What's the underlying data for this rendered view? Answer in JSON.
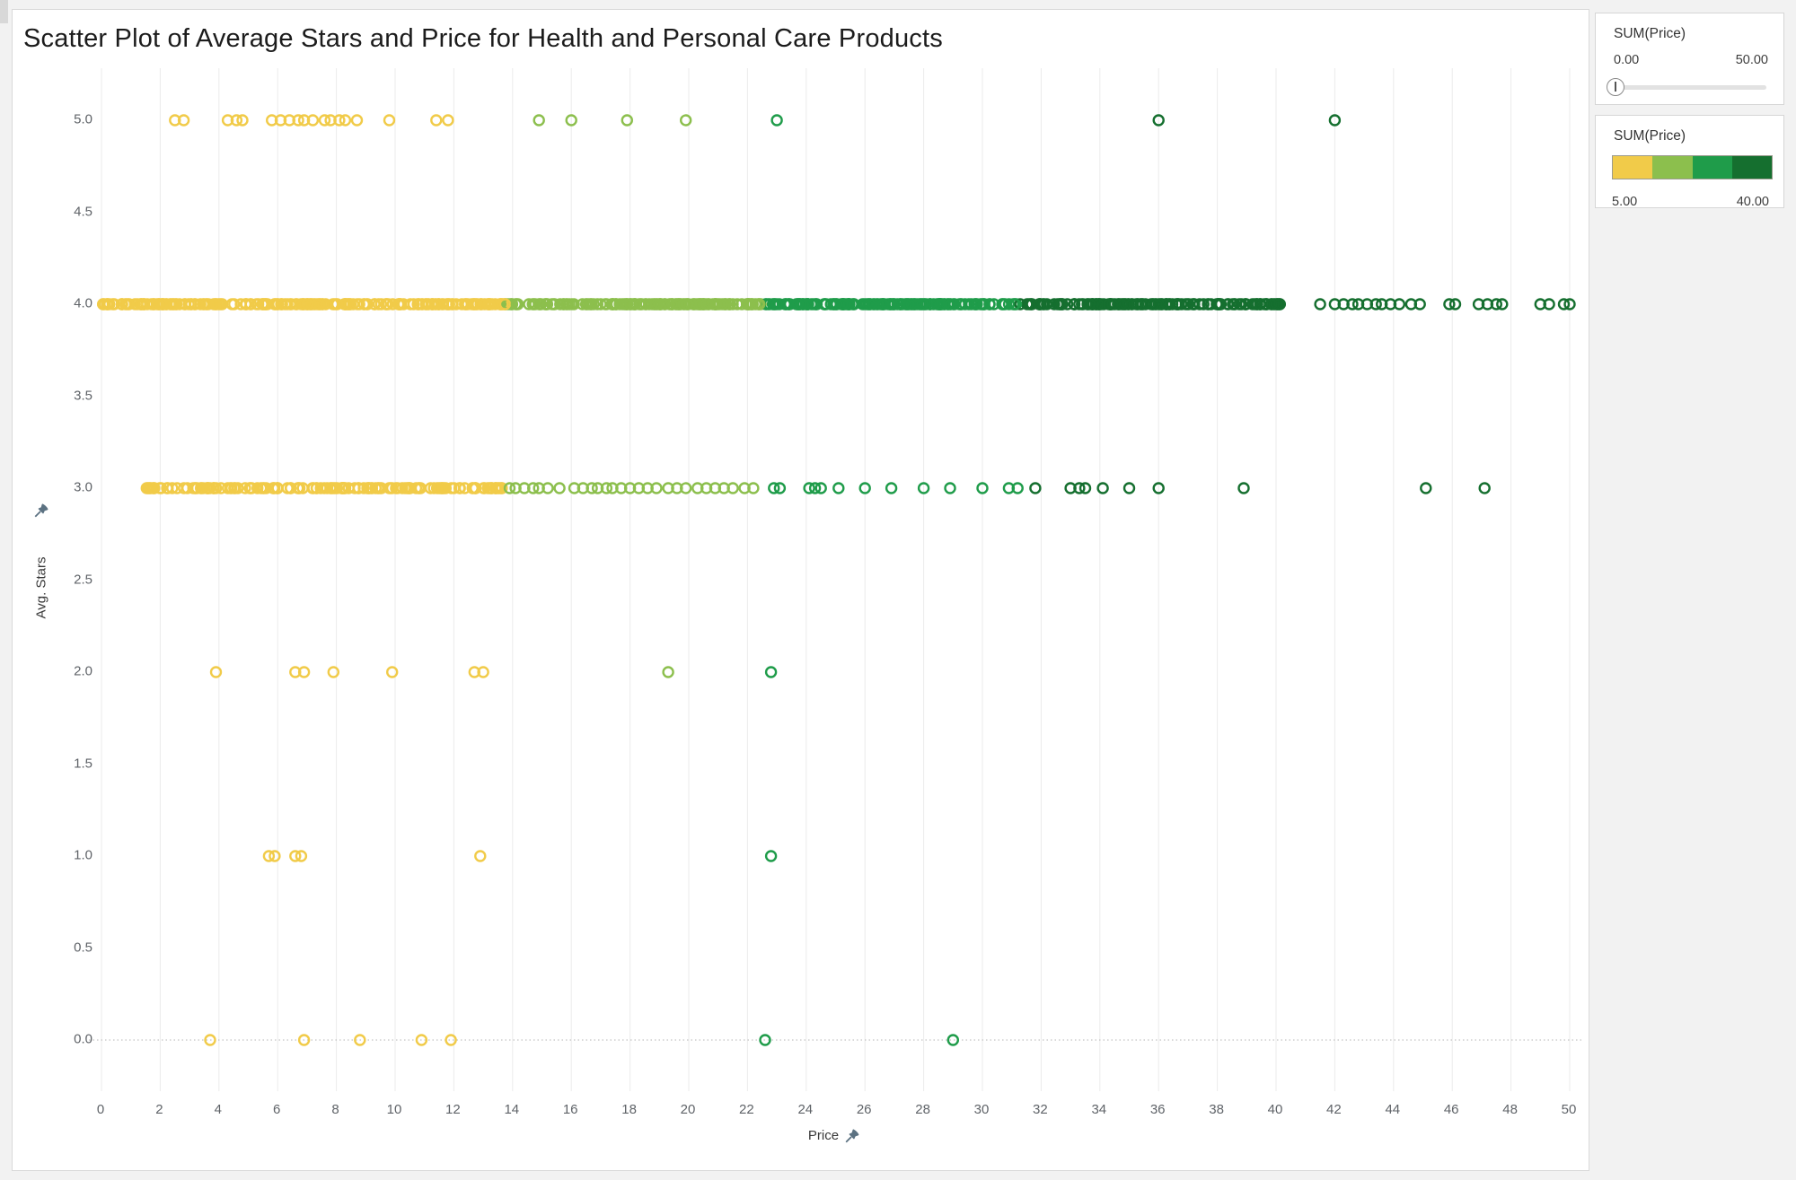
{
  "title": "Scatter Plot of Average Stars and Price for Health and Personal Care Products",
  "axes": {
    "x": {
      "label": "Price",
      "min": 0,
      "max": 50,
      "tick_step": 2,
      "ticks": [
        "0",
        "2",
        "4",
        "6",
        "8",
        "10",
        "12",
        "14",
        "16",
        "18",
        "20",
        "22",
        "24",
        "26",
        "28",
        "30",
        "32",
        "34",
        "36",
        "38",
        "40",
        "42",
        "44",
        "46",
        "48",
        "50"
      ]
    },
    "y": {
      "label": "Avg. Stars",
      "min": 0,
      "max": 5,
      "tick_step": 0.5,
      "ticks": [
        "0.0",
        "0.5",
        "1.0",
        "1.5",
        "2.0",
        "2.5",
        "3.0",
        "3.5",
        "4.0",
        "4.5",
        "5.0"
      ]
    }
  },
  "colors": {
    "palette_steps": [
      "#F1CB49",
      "#8CBF4D",
      "#1F9C4A",
      "#156F2F"
    ],
    "thresholds": [
      13.75,
      22.5,
      31.25
    ],
    "gridline": "#ebebeb",
    "zero_line": "#b5b5b5",
    "pin": "#5c7282"
  },
  "chart_data": {
    "type": "scatter",
    "title": "Scatter Plot of Average Stars and Price for Health and Personal Care Products",
    "xlabel": "Price",
    "ylabel": "Avg. Stars",
    "xlim": [
      0,
      50
    ],
    "ylim": [
      0,
      5
    ],
    "grid": "vertical-only, dotted reference line at y=0",
    "legend_position": "right",
    "color_encoding": "SUM(Price), 4 stepped colors from 5.00 (gold) to 40.00 (dark green)",
    "marker": "open circle",
    "rows": [
      {
        "stars": 5.0,
        "points": [
          2.5,
          2.8,
          4.3,
          4.6,
          4.8,
          5.8,
          6.1,
          6.4,
          6.7,
          6.9,
          7.2,
          7.6,
          7.8,
          8.1,
          8.3,
          8.7,
          9.8,
          11.4,
          11.8,
          14.9,
          16.0,
          17.9,
          19.9,
          23.0,
          36.0,
          42.0
        ]
      },
      {
        "stars": 4.0,
        "bands": [
          {
            "from": 0.05,
            "to": 40.3,
            "count": 680,
            "seed": 42
          }
        ],
        "points": [
          41.5,
          42.0,
          42.3,
          42.6,
          42.8,
          43.1,
          43.4,
          43.6,
          43.9,
          44.2,
          44.6,
          44.9,
          45.9,
          46.1,
          46.9,
          47.2,
          47.5,
          47.7,
          49.0,
          49.3,
          49.8,
          50.0
        ]
      },
      {
        "stars": 3.0,
        "bands": [
          {
            "from": 1.5,
            "to": 13.7,
            "count": 150,
            "seed": 7
          }
        ],
        "points": [
          13.9,
          14.1,
          14.4,
          14.7,
          14.9,
          15.2,
          15.6,
          16.1,
          16.4,
          16.7,
          16.9,
          17.2,
          17.4,
          17.7,
          18.0,
          18.3,
          18.6,
          18.9,
          19.3,
          19.6,
          19.9,
          20.3,
          20.6,
          20.9,
          21.2,
          21.5,
          21.9,
          22.2,
          22.9,
          23.1,
          24.1,
          24.3,
          24.5,
          25.1,
          26.0,
          26.9,
          28.0,
          28.9,
          30.0,
          30.9,
          31.2,
          31.8,
          33.0,
          33.3,
          33.5,
          34.1,
          35.0,
          36.0,
          38.9,
          45.1,
          47.1
        ]
      },
      {
        "stars": 2.0,
        "points": [
          3.9,
          6.6,
          6.9,
          7.9,
          9.9,
          12.7,
          13.0,
          19.3,
          22.8
        ]
      },
      {
        "stars": 1.0,
        "points": [
          5.7,
          5.9,
          6.6,
          6.8,
          12.9,
          22.8
        ]
      },
      {
        "stars": 0.0,
        "points": [
          3.7,
          6.9,
          8.8,
          10.9,
          11.9,
          22.6,
          29.0
        ]
      }
    ]
  },
  "sidebar": {
    "filter": {
      "title": "SUM(Price)",
      "min_label": "0.00",
      "max_label": "50.00",
      "handle_position": "min"
    },
    "legend": {
      "title": "SUM(Price)",
      "min_label": "5.00",
      "max_label": "40.00",
      "colors": [
        "#F1CB49",
        "#8CBF4D",
        "#1F9C4A",
        "#156F2F"
      ]
    }
  }
}
